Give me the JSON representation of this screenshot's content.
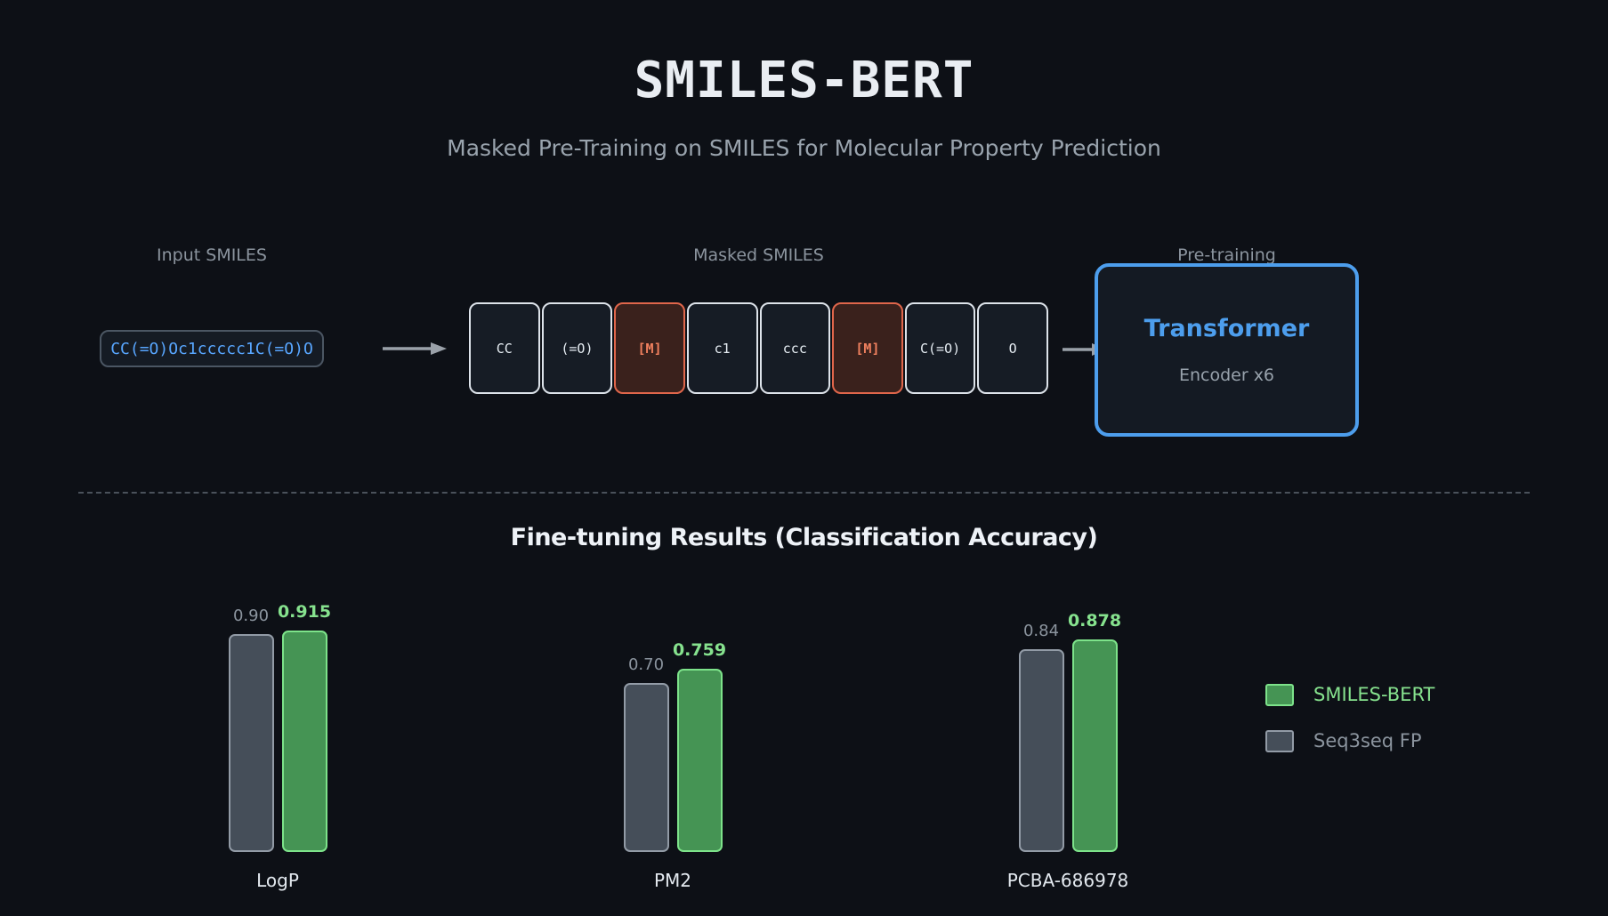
{
  "colors": {
    "background": "#0d1016",
    "accent_blue": "#58a6ff",
    "transformer_blue": "#4d9eed",
    "mask_orange_border": "#e0664b",
    "mask_orange_text": "#f0805e",
    "muted_text": "#8b949e",
    "bright_text": "#e9edf2"
  },
  "header": {
    "title": "SMILES-BERT",
    "subtitle": "Masked Pre-Training on SMILES for Molecular Property Prediction"
  },
  "pipeline": {
    "input": {
      "label": "Input SMILES",
      "value": "CC(=O)Oc1ccccc1C(=O)O"
    },
    "masked": {
      "label": "Masked SMILES",
      "tokens": [
        {
          "text": "CC",
          "masked": false
        },
        {
          "text": "(=O)",
          "masked": false
        },
        {
          "text": "[M]",
          "masked": true
        },
        {
          "text": "c1",
          "masked": false
        },
        {
          "text": "ccc",
          "masked": false
        },
        {
          "text": "[M]",
          "masked": true
        },
        {
          "text": "C(=O)",
          "masked": false
        },
        {
          "text": "O",
          "masked": false
        }
      ]
    },
    "pretraining": {
      "label": "Pre-training",
      "box_title": "Transformer",
      "box_subtitle": "Encoder x6"
    }
  },
  "results": {
    "title": "Fine-tuning Results (Classification Accuracy)"
  },
  "chart_data": {
    "type": "bar",
    "title": "Fine-tuning Results (Classification Accuracy)",
    "categories": [
      "LogP",
      "PM2",
      "PCBA-686978"
    ],
    "series": [
      {
        "name": "Seq3seq FP",
        "values": [
          0.9,
          0.7,
          0.84
        ],
        "value_labels": [
          "0.90",
          "0.70",
          "0.84"
        ],
        "fill": "#454e59",
        "border": "#929ba6",
        "label_color": "#8b949e",
        "highlight": false
      },
      {
        "name": "SMILES-BERT",
        "values": [
          0.915,
          0.759,
          0.878
        ],
        "value_labels": [
          "0.915",
          "0.759",
          "0.878"
        ],
        "fill": "#459454",
        "border": "#7de38a",
        "label_color": "#86e28e",
        "highlight": true
      }
    ],
    "ylim": [
      0,
      1
    ],
    "grid": false,
    "axes_hidden": true,
    "value_labels": true,
    "legend": {
      "position": "right",
      "entries": [
        "SMILES-BERT",
        "Seq3seq FP"
      ]
    }
  }
}
